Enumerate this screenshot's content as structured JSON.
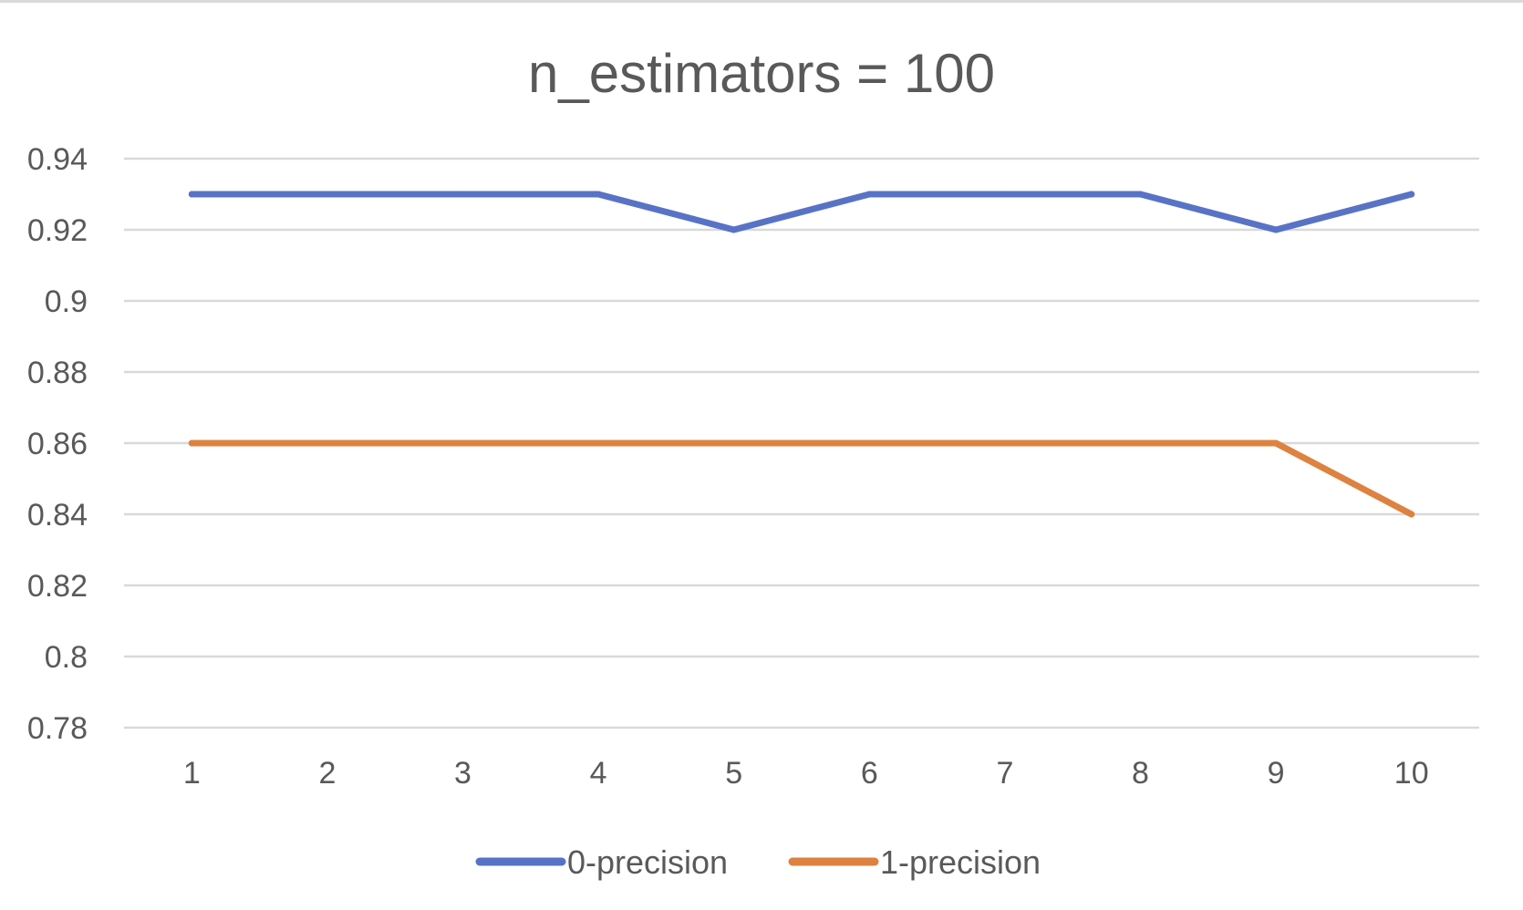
{
  "chart_data": {
    "type": "line",
    "title": "n_estimators = 100",
    "xlabel": "",
    "ylabel": "",
    "categories": [
      "1",
      "2",
      "3",
      "4",
      "5",
      "6",
      "7",
      "8",
      "9",
      "10"
    ],
    "yticks": [
      "0.94",
      "0.92",
      "0.9",
      "0.88",
      "0.86",
      "0.84",
      "0.82",
      "0.8",
      "0.78"
    ],
    "ylim": [
      0.78,
      0.94
    ],
    "grid": true,
    "legend_position": "bottom",
    "series": [
      {
        "name": "0-precision",
        "color": "#5873C6",
        "values": [
          0.93,
          0.93,
          0.93,
          0.93,
          0.92,
          0.93,
          0.93,
          0.93,
          0.92,
          0.93
        ]
      },
      {
        "name": "1-precision",
        "color": "#DD8240",
        "values": [
          0.86,
          0.86,
          0.86,
          0.86,
          0.86,
          0.86,
          0.86,
          0.86,
          0.86,
          0.84
        ]
      }
    ]
  }
}
